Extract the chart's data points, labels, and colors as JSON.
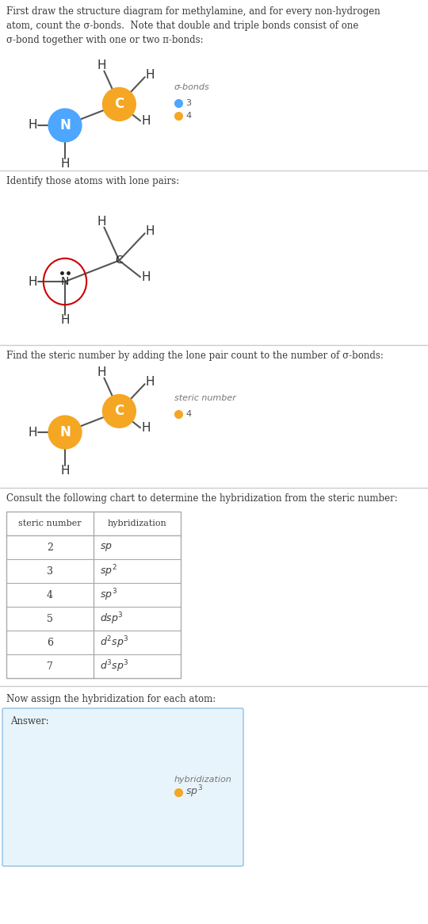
{
  "bg_color": "#ffffff",
  "text_color": "#3a3a3a",
  "N_color": "#4da6ff",
  "C_color": "#f5a623",
  "section1_text": "First draw the structure diagram for methylamine, and for every non-hydrogen\natom, count the σ-bonds.  Note that double and triple bonds consist of one\nσ-bond together with one or two π-bonds:",
  "section2_text": "Identify those atoms with lone pairs:",
  "section3_text": "Find the steric number by adding the lone pair count to the number of σ-bonds:",
  "section4_text": "Consult the following chart to determine the hybridization from the steric number:",
  "section5_text": "Now assign the hybridization for each atom:",
  "table_steric": [
    "2",
    "3",
    "4",
    "5",
    "6",
    "7"
  ],
  "table_hybrid": [
    "sp",
    "sp^2",
    "sp^3",
    "dsp^3",
    "d^2sp^3",
    "d^3sp^3"
  ],
  "legend1_label": "σ-bonds",
  "legend3_label": "steric number",
  "legend5_label": "hybridization"
}
